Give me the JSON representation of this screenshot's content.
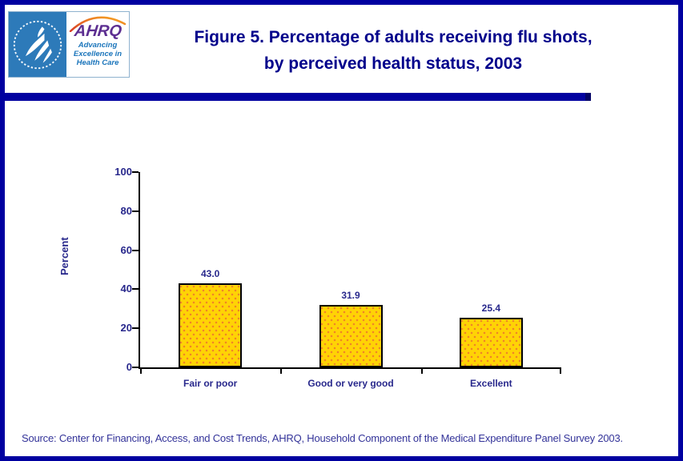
{
  "header": {
    "logo": {
      "ahrq": "AHRQ",
      "tagline1": "Advancing",
      "tagline2": "Excellence in",
      "tagline3": "Health Care"
    },
    "title_line1": "Figure 5. Percentage of adults receiving flu shots,",
    "title_line2": "by perceived health status, 2003"
  },
  "chart_data": {
    "type": "bar",
    "title": "Figure 5. Percentage of adults receiving flu shots, by perceived health status, 2003",
    "categories": [
      "Fair or poor",
      "Good or very good",
      "Excellent"
    ],
    "values": [
      43.0,
      31.9,
      25.4
    ],
    "value_labels": [
      "43.0",
      "31.9",
      "25.4"
    ],
    "xlabel": "",
    "ylabel": "Percent",
    "ylim": [
      0,
      100
    ],
    "yticks": [
      0,
      20,
      40,
      60,
      80,
      100
    ],
    "grid": false,
    "legend": "none",
    "bar_color": "#FFD305",
    "bar_dot_color": "#F08228",
    "bar_border_color": "#000000"
  },
  "footer": {
    "source": "Source: Center for Financing, Access, and Cost Trends, AHRQ, Household Component of the Medical Expenditure Panel Survey 2003."
  },
  "colors": {
    "page_border": "#0000A0",
    "divider": "#0000A0",
    "title_text": "#00008B",
    "axis_text": "#28288C",
    "source_text": "#333399",
    "hhs_panel_blue": "#2D7AB9",
    "ahrq_purple": "#5C2E91",
    "tagline_blue": "#1B75BB"
  }
}
